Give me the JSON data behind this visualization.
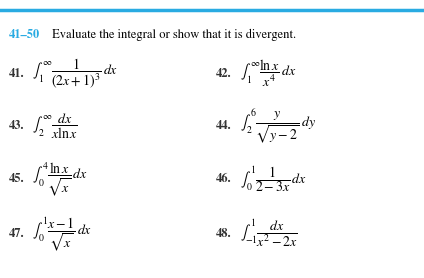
{
  "background_color": "#ffffff",
  "header_color": "#29ABE2",
  "line_color": "#29ABE2",
  "title_num": "41–50",
  "title_text": " Evaluate the integral or show that it is divergent.",
  "problems": [
    {
      "num": "41.",
      "nx": 0.02,
      "ny": 0.735,
      "fx": 0.075,
      "fy": 0.735,
      "formula": "$\\int_{\\,1}^{\\infty} \\dfrac{1}{(2x+1)^3}\\,dx$"
    },
    {
      "num": "42.",
      "nx": 0.51,
      "ny": 0.735,
      "fx": 0.565,
      "fy": 0.735,
      "formula": "$\\int_{\\,1}^{\\infty} \\dfrac{\\ln x}{x^4}\\,dx$"
    },
    {
      "num": "43.",
      "nx": 0.02,
      "ny": 0.545,
      "fx": 0.075,
      "fy": 0.545,
      "formula": "$\\int_{\\,2}^{\\infty} \\dfrac{dx}{x\\ln x}$"
    },
    {
      "num": "44.",
      "nx": 0.51,
      "ny": 0.545,
      "fx": 0.565,
      "fy": 0.545,
      "formula": "$\\int_{\\,2}^{6} \\dfrac{y}{\\sqrt{y-2}}\\,dy$"
    },
    {
      "num": "45.",
      "nx": 0.02,
      "ny": 0.355,
      "fx": 0.075,
      "fy": 0.355,
      "formula": "$\\int_{\\,0}^{4} \\dfrac{\\ln x}{\\sqrt{x}}\\,dx$"
    },
    {
      "num": "46.",
      "nx": 0.51,
      "ny": 0.355,
      "fx": 0.565,
      "fy": 0.355,
      "formula": "$\\int_{\\,0}^{1} \\dfrac{1}{2-3x}\\,dx$"
    },
    {
      "num": "47.",
      "nx": 0.02,
      "ny": 0.16,
      "fx": 0.075,
      "fy": 0.16,
      "formula": "$\\int_{\\,0}^{1} \\dfrac{x-1}{\\sqrt{x}}\\,dx$"
    },
    {
      "num": "48.",
      "nx": 0.51,
      "ny": 0.16,
      "fx": 0.565,
      "fy": 0.16,
      "formula": "$\\int_{-1}^{1} \\dfrac{dx}{x^2-2x}$"
    }
  ]
}
